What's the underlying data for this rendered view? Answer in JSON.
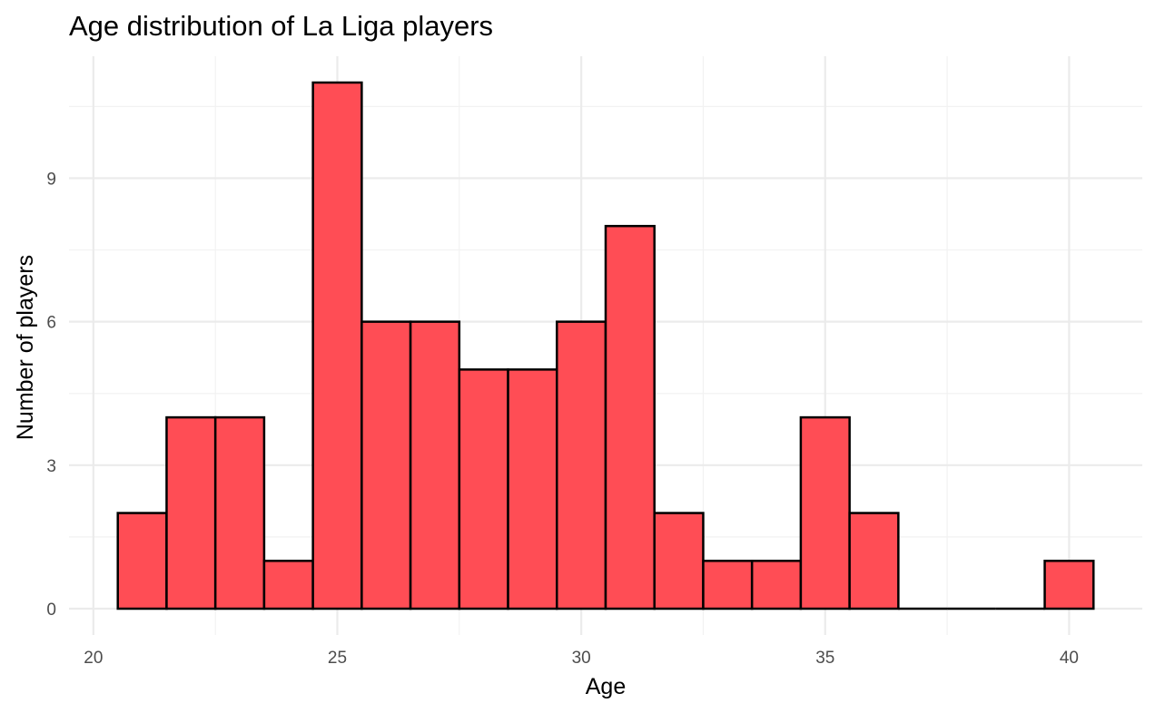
{
  "chart_data": {
    "type": "bar",
    "title": "Age distribution of La Liga players",
    "xlabel": "Age",
    "ylabel": "Number of players",
    "x": [
      21,
      22,
      23,
      24,
      25,
      26,
      27,
      28,
      29,
      30,
      31,
      32,
      33,
      34,
      35,
      36,
      37,
      38,
      39,
      40
    ],
    "values": [
      2,
      4,
      4,
      1,
      11,
      6,
      6,
      5,
      5,
      6,
      8,
      2,
      1,
      1,
      4,
      2,
      0,
      0,
      0,
      1
    ],
    "bin_width": 1,
    "xlim": [
      19.5,
      41.5
    ],
    "ylim": [
      -0.55,
      11.55
    ],
    "x_ticks": [
      20,
      25,
      30,
      35,
      40
    ],
    "y_ticks": [
      0,
      3,
      6,
      9
    ],
    "grid": true,
    "legend": "none",
    "colors": {
      "bar_fill": "#ff4d55",
      "bar_outline": "#000000",
      "grid": "#ebebeb",
      "tick_text": "#4d4d4d"
    }
  }
}
